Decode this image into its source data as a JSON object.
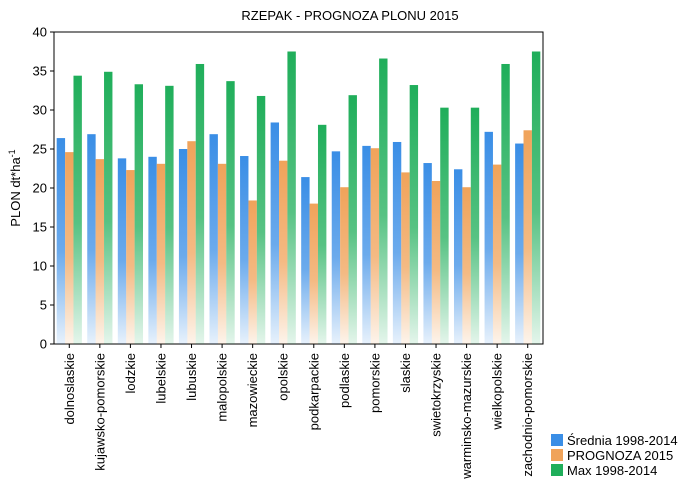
{
  "chart_data": {
    "type": "bar",
    "title": "RZEPAK - PROGNOZA PLONU 2015",
    "ylabel_base": "PLON dt*ha",
    "ylabel_sup": "-1",
    "xlabel": "",
    "ylim": [
      0,
      40
    ],
    "yticks": [
      0,
      5,
      10,
      15,
      20,
      25,
      30,
      35,
      40
    ],
    "grid": false,
    "legend_position": "bottom-right",
    "categories": [
      "dolnoslaskie",
      "kujawsko-pomorskie",
      "lodzkie",
      "lubelskie",
      "lubuskie",
      "malopolskie",
      "mazowieckie",
      "opolskie",
      "podkarpackie",
      "podlaskie",
      "pomorskie",
      "slaskie",
      "swietokrzyskie",
      "warminsko-mazurskie",
      "wielkopolskie",
      "zachodnio-pomorskie"
    ],
    "series": [
      {
        "name": "Średnia 1998-2014",
        "color": "#3a8ee6",
        "values": [
          26.4,
          26.9,
          23.8,
          24.0,
          25.0,
          26.9,
          24.1,
          28.4,
          21.4,
          24.7,
          25.4,
          25.9,
          23.2,
          22.4,
          27.2,
          25.7
        ]
      },
      {
        "name": "PROGNOZA 2015",
        "color": "#f0a35a",
        "values": [
          24.6,
          23.7,
          22.3,
          23.1,
          26.0,
          23.1,
          18.4,
          23.5,
          18.0,
          20.1,
          25.1,
          22.0,
          20.9,
          20.1,
          23.0,
          27.4
        ]
      },
      {
        "name": "Max 1998-2014",
        "color": "#1fae5a",
        "values": [
          34.4,
          34.9,
          33.3,
          33.1,
          35.9,
          33.7,
          31.8,
          37.5,
          28.1,
          31.9,
          36.6,
          33.2,
          30.3,
          30.3,
          35.9,
          37.5
        ]
      }
    ]
  }
}
